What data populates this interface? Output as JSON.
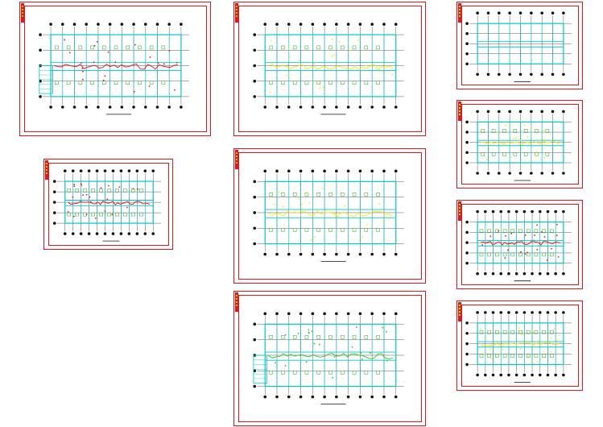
{
  "viewer": {
    "background": "#ffffff",
    "frame_color": "#e8141a",
    "wall_color": "#00c8c8",
    "highlight_colors": [
      "#e8141a",
      "#f0f000",
      "#22cc22",
      "#ff8800"
    ]
  },
  "sheets": [
    {
      "id": "sheet-1",
      "variant": "plan-with-stair",
      "highlight": "red"
    },
    {
      "id": "sheet-2",
      "variant": "plan-typical",
      "highlight": "red"
    },
    {
      "id": "sheet-3",
      "variant": "plan-detail",
      "highlight": "yellow"
    },
    {
      "id": "sheet-4",
      "variant": "plan-detail",
      "highlight": "yellow"
    },
    {
      "id": "sheet-5",
      "variant": "plan-roof",
      "highlight": "green"
    },
    {
      "id": "sheet-6",
      "variant": "plan-outline",
      "highlight": "none"
    },
    {
      "id": "sheet-7",
      "variant": "plan-rooms",
      "highlight": "yellow"
    },
    {
      "id": "sheet-8",
      "variant": "plan-typical",
      "highlight": "red"
    },
    {
      "id": "sheet-9",
      "variant": "plan-typical",
      "highlight": "yellow"
    }
  ]
}
